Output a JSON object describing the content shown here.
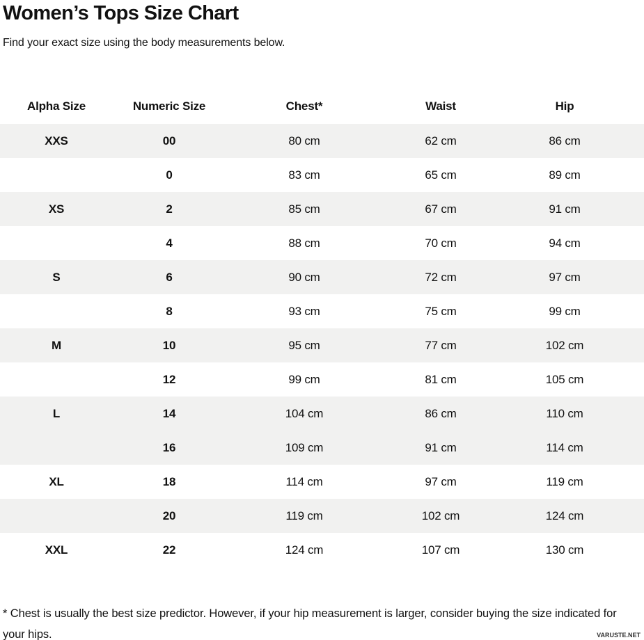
{
  "page": {
    "title": "Women’s Tops Size Chart",
    "subtitle": "Find your exact size using the body measurements below.",
    "footnote": "* Chest is usually the best size predictor. However, if your hip measurement is larger, consider buying the size indicated for your hips.",
    "watermark": "VARUSTE.NET"
  },
  "theme": {
    "stripe_color": "#f1f1f0",
    "text_color": "#111111",
    "background_color": "#ffffff"
  },
  "chart_data": {
    "type": "table",
    "title": "Women’s Tops Size Chart",
    "columns": [
      "Alpha Size",
      "Numeric Size",
      "Chest*",
      "Waist",
      "Hip"
    ],
    "units": "cm",
    "rows": [
      {
        "alpha_size": "XXS",
        "numeric_size": "00",
        "chest": "80 cm",
        "waist": "62 cm",
        "hip": "86 cm",
        "shaded": true
      },
      {
        "alpha_size": "",
        "numeric_size": "0",
        "chest": "83 cm",
        "waist": "65 cm",
        "hip": "89 cm",
        "shaded": false
      },
      {
        "alpha_size": "XS",
        "numeric_size": "2",
        "chest": "85 cm",
        "waist": "67 cm",
        "hip": "91 cm",
        "shaded": true
      },
      {
        "alpha_size": "",
        "numeric_size": "4",
        "chest": "88 cm",
        "waist": "70 cm",
        "hip": "94 cm",
        "shaded": false
      },
      {
        "alpha_size": "S",
        "numeric_size": "6",
        "chest": "90 cm",
        "waist": "72 cm",
        "hip": "97 cm",
        "shaded": true
      },
      {
        "alpha_size": "",
        "numeric_size": "8",
        "chest": "93 cm",
        "waist": "75 cm",
        "hip": "99 cm",
        "shaded": false
      },
      {
        "alpha_size": "M",
        "numeric_size": "10",
        "chest": "95 cm",
        "waist": "77 cm",
        "hip": "102 cm",
        "shaded": true
      },
      {
        "alpha_size": "",
        "numeric_size": "12",
        "chest": "99 cm",
        "waist": "81 cm",
        "hip": "105 cm",
        "shaded": false
      },
      {
        "alpha_size": "L",
        "numeric_size": "14",
        "chest": "104 cm",
        "waist": "86 cm",
        "hip": "110 cm",
        "shaded": true
      },
      {
        "alpha_size": "",
        "numeric_size": "16",
        "chest": "109 cm",
        "waist": "91 cm",
        "hip": "114 cm",
        "shaded": true
      },
      {
        "alpha_size": "XL",
        "numeric_size": "18",
        "chest": "114 cm",
        "waist": "97 cm",
        "hip": "119 cm",
        "shaded": false
      },
      {
        "alpha_size": "",
        "numeric_size": "20",
        "chest": "119 cm",
        "waist": "102 cm",
        "hip": "124 cm",
        "shaded": true
      },
      {
        "alpha_size": "XXL",
        "numeric_size": "22",
        "chest": "124 cm",
        "waist": "107 cm",
        "hip": "130 cm",
        "shaded": false
      }
    ]
  }
}
